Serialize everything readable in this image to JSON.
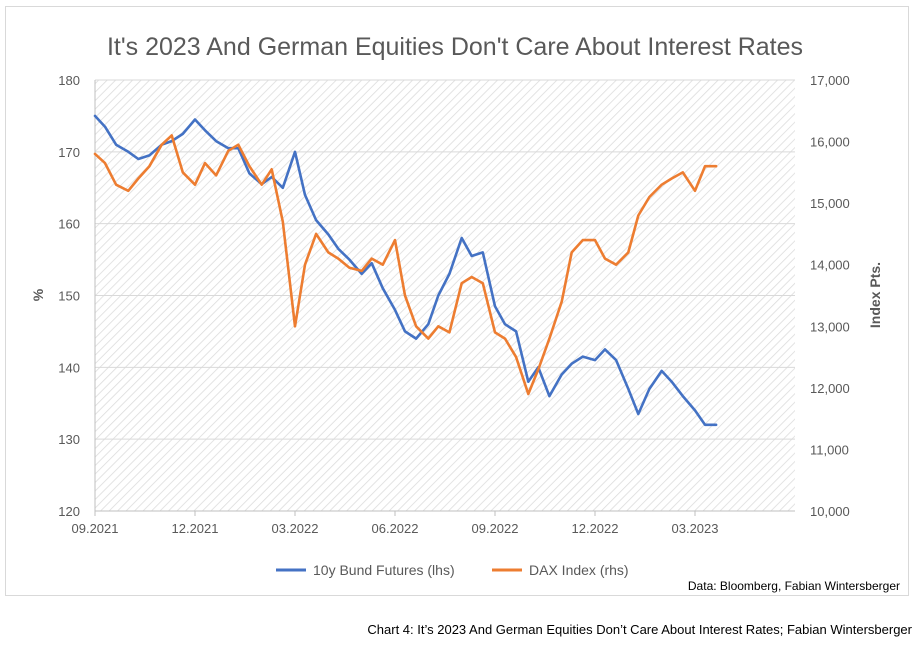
{
  "caption": "Chart 4: It’s 2023 And German Equities Don’t Care About Interest Rates; Fabian Wintersberger",
  "chart_data": {
    "type": "line",
    "title": "It's 2023 And German Equities Don't Care About Interest Rates",
    "source": "Data: Bloomberg, Fabian Wintersberger",
    "x_ticks": [
      "09.2021",
      "12.2021",
      "03.2022",
      "06.2022",
      "09.2022",
      "12.2022",
      "03.2023"
    ],
    "x_range": [
      "09.2021",
      "06.2023"
    ],
    "y_left": {
      "label": "%",
      "range": [
        120,
        180
      ],
      "ticks": [
        "120",
        "130",
        "140",
        "150",
        "160",
        "170",
        "180"
      ]
    },
    "y_right": {
      "label": "Index Pts.",
      "range": [
        10000,
        17000
      ],
      "ticks": [
        "10,000",
        "11,000",
        "12,000",
        "13,000",
        "14,000",
        "15,000",
        "16,000",
        "17,000"
      ]
    },
    "grid": true,
    "legend_position": "bottom",
    "colors": {
      "bund": "#4472c4",
      "dax": "#ed7d31",
      "title": "#595959",
      "axis_text": "#595959"
    },
    "series": [
      {
        "name": "10y Bund Futures (lhs)",
        "axis": "left",
        "x": [
          "2021-09-01",
          "2021-09-10",
          "2021-09-20",
          "2021-10-01",
          "2021-10-10",
          "2021-10-20",
          "2021-11-01",
          "2021-11-10",
          "2021-11-20",
          "2021-12-01",
          "2021-12-10",
          "2021-12-20",
          "2022-01-01",
          "2022-01-10",
          "2022-01-20",
          "2022-02-01",
          "2022-02-10",
          "2022-02-20",
          "2022-03-01",
          "2022-03-10",
          "2022-03-20",
          "2022-04-01",
          "2022-04-10",
          "2022-04-20",
          "2022-05-01",
          "2022-05-10",
          "2022-05-20",
          "2022-06-01",
          "2022-06-10",
          "2022-06-20",
          "2022-07-01",
          "2022-07-10",
          "2022-07-20",
          "2022-08-01",
          "2022-08-10",
          "2022-08-20",
          "2022-09-01",
          "2022-09-10",
          "2022-09-20",
          "2022-10-01",
          "2022-10-10",
          "2022-10-20",
          "2022-11-01",
          "2022-11-10",
          "2022-11-20",
          "2022-12-01",
          "2022-12-10",
          "2022-12-20",
          "2023-01-01",
          "2023-01-10",
          "2023-01-20",
          "2023-02-01",
          "2023-02-10",
          "2023-02-20",
          "2023-03-01",
          "2023-03-10",
          "2023-03-20"
        ],
        "values": [
          175.0,
          173.5,
          171.0,
          170.0,
          169.0,
          169.5,
          171.0,
          171.5,
          172.5,
          174.5,
          173.0,
          171.5,
          170.5,
          170.5,
          167.0,
          165.5,
          166.5,
          165.0,
          170.0,
          164.0,
          160.5,
          158.5,
          156.5,
          155.0,
          153.0,
          154.5,
          151.0,
          148.0,
          145.0,
          144.0,
          146.0,
          150.0,
          153.0,
          158.0,
          155.5,
          156.0,
          148.5,
          146.0,
          145.0,
          138.0,
          140.0,
          136.0,
          139.0,
          140.5,
          141.5,
          141.0,
          142.5,
          141.0,
          137.0,
          133.5,
          137.0,
          139.5,
          138.0,
          136.0,
          134.0,
          132.0,
          132.0
        ]
      },
      {
        "name": "DAX Index (rhs)",
        "axis": "right",
        "x": [
          "2021-09-01",
          "2021-09-10",
          "2021-09-20",
          "2021-10-01",
          "2021-10-10",
          "2021-10-20",
          "2021-11-01",
          "2021-11-10",
          "2021-11-20",
          "2021-12-01",
          "2021-12-10",
          "2021-12-20",
          "2022-01-01",
          "2022-01-10",
          "2022-01-20",
          "2022-02-01",
          "2022-02-10",
          "2022-02-20",
          "2022-03-01",
          "2022-03-10",
          "2022-03-20",
          "2022-04-01",
          "2022-04-10",
          "2022-04-20",
          "2022-05-01",
          "2022-05-10",
          "2022-05-20",
          "2022-06-01",
          "2022-06-10",
          "2022-06-20",
          "2022-07-01",
          "2022-07-10",
          "2022-07-20",
          "2022-08-01",
          "2022-08-10",
          "2022-08-20",
          "2022-09-01",
          "2022-09-10",
          "2022-09-20",
          "2022-10-01",
          "2022-10-10",
          "2022-10-20",
          "2022-11-01",
          "2022-11-10",
          "2022-11-20",
          "2022-12-01",
          "2022-12-10",
          "2022-12-20",
          "2023-01-01",
          "2023-01-10",
          "2023-01-20",
          "2023-02-01",
          "2023-02-10",
          "2023-02-20",
          "2023-03-01",
          "2023-03-10",
          "2023-03-20"
        ],
        "values": [
          15800,
          15650,
          15300,
          15200,
          15400,
          15600,
          15950,
          16100,
          15500,
          15300,
          15650,
          15450,
          15850,
          15950,
          15600,
          15300,
          15550,
          14700,
          13000,
          14000,
          14500,
          14200,
          14100,
          13950,
          13900,
          14100,
          14000,
          14400,
          13500,
          13000,
          12800,
          13000,
          12900,
          13700,
          13800,
          13700,
          12900,
          12800,
          12500,
          11900,
          12300,
          12800,
          13400,
          14200,
          14400,
          14400,
          14100,
          14000,
          14200,
          14800,
          15100,
          15300,
          15400,
          15500,
          15200,
          15600,
          15600
        ]
      }
    ]
  }
}
